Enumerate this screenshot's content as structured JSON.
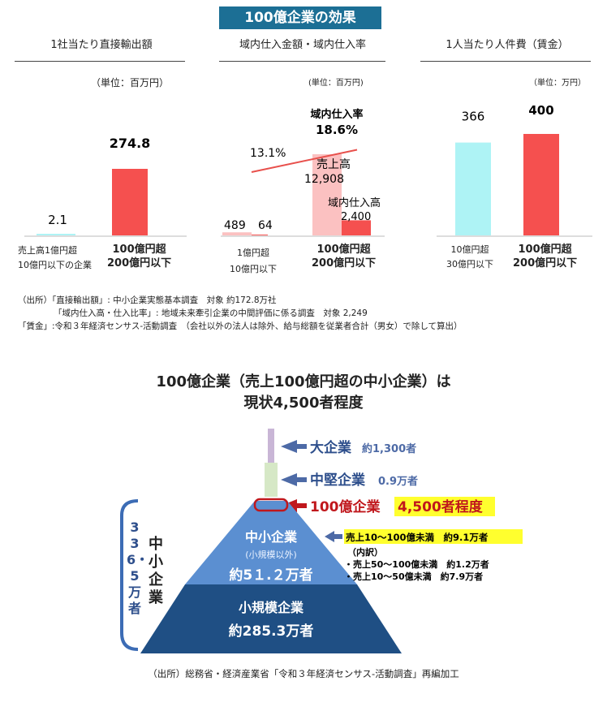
{
  "banner": "100億企業の効果",
  "panels": [
    {
      "title": "1社当たり直接輸出額",
      "unit": "（単位：百万円）",
      "cat_small_1": "売上高1億円超",
      "cat_small_2": "10億円以下の企業",
      "cat_big_1": "100億円超",
      "cat_big_2": "200億円以下"
    },
    {
      "title": "域内仕入金額・域内仕入率",
      "unit": "(単位：百万円)",
      "cat_small_1": "1億円超",
      "cat_small_2": "10億円以下",
      "cat_big_1": "100億円超",
      "cat_big_2": "200億円以下"
    },
    {
      "title": "1人当たり人件費（賃金）",
      "unit": "（単位：万円）",
      "cat_small_1": "10億円超",
      "cat_small_2": "30億円以下",
      "cat_big_1": "100億円超",
      "cat_big_2": "200億円以下"
    }
  ],
  "chart_data": [
    {
      "type": "bar",
      "title": "1社当たり直接輸出額",
      "ylabel": "百万円",
      "categories": [
        "売上高1億円超 10億円以下の企業",
        "100億円超 200億円以下"
      ],
      "values": [
        2.1,
        274.8
      ],
      "value_labels": [
        "2.1",
        "274.8"
      ],
      "colors": [
        "#aef3f5",
        "#f5504f"
      ]
    },
    {
      "type": "bar",
      "title": "域内仕入金額・域内仕入率",
      "ylabel": "百万円",
      "categories": [
        "1億円超 10億円以下",
        "100億円超 200億円以下"
      ],
      "series": [
        {
          "name": "売上高",
          "values": [
            489,
            12908
          ],
          "value_labels": [
            "489",
            "12,908"
          ],
          "color": "#fbc1c1"
        },
        {
          "name": "域内仕入高",
          "values": [
            64,
            2400
          ],
          "value_labels": [
            "64",
            "2,400"
          ],
          "color": "#f5504f"
        }
      ],
      "rate_line": {
        "values": [
          13.1,
          18.6
        ],
        "value_labels": [
          "13.1%",
          "18.6%"
        ],
        "name": "域内仕入率",
        "color": "#e8504c"
      }
    },
    {
      "type": "bar",
      "title": "1人当たり人件費（賃金）",
      "ylabel": "万円",
      "categories": [
        "10億円超 30億円以下",
        "100億円超 200億円以下"
      ],
      "values": [
        366,
        400
      ],
      "value_labels": [
        "366",
        "400"
      ],
      "colors": [
        "#aef3f5",
        "#f5504f"
      ]
    }
  ],
  "labels": {
    "rate_title": "域内仕入率",
    "rate_big": "18.6%",
    "sales_label": "売上高",
    "sales_value": "12,908",
    "procure_label": "域内仕入高",
    "procure_value": "2,400"
  },
  "source_top": [
    "（出所）「直接輸出額」: 中小企業実態基本調査　対象 約172.8万社",
    "「域内仕入高・仕入比率」: 地域未来牽引企業の中間評価に係る調査　対象 2,249",
    "「賃金」:令和３年経済センサス-活動調査　（会社以外の法人は除外、給与総額を従業者合計（男女）で除して算出）"
  ],
  "pyramid": {
    "headline_1": "100億企業（売上100億円超の中小企業）は",
    "headline_2": "現状4,500者程度",
    "large_label": "大企業",
    "large_count": "約1,300者",
    "midsize_label": "中堅企業",
    "midsize_count": "0.9万者",
    "b100_label": "100億企業",
    "b100_count": "4,500者程度",
    "sme_label": "中小企業",
    "sme_note": "(小規模以外)",
    "sme_count": "約5１.２万者",
    "small_label": "小規模企業",
    "small_count": "約285.3万者",
    "total_vertical": "336・5万者",
    "sme_vertical": "中小企業",
    "breakdown_main": "売上10～100億未満　約9.1万者",
    "breakdown_head": "（内訳）",
    "breakdown_1": "・売上50～100億未満　約1.2万者",
    "breakdown_2": "・売上10～50億未満　約7.9万者",
    "source": "（出所）総務省・経済産業省「令和３年経済センサス-活動調査」再編加工"
  }
}
